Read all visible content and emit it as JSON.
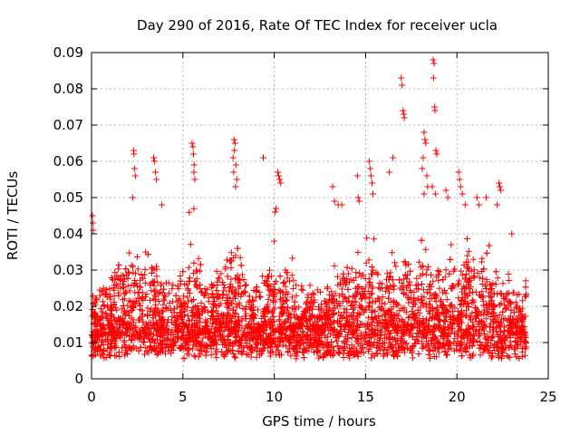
{
  "chart_data": {
    "type": "scatter",
    "title": "Day 290 of 2016, Rate Of TEC Index for receiver ucla",
    "xlabel": "GPS time / hours",
    "ylabel": "ROTI / TECUs",
    "xlim": [
      0,
      25
    ],
    "ylim": [
      0,
      0.09
    ],
    "xticks": [
      0,
      5,
      10,
      15,
      20,
      25
    ],
    "yticks": [
      0,
      0.01,
      0.02,
      0.03,
      0.04,
      0.05,
      0.06,
      0.07,
      0.08,
      0.09
    ],
    "grid": true,
    "marker": "+",
    "series": [
      {
        "name": "ROTI",
        "color": "#ff0000",
        "x_range": [
          0,
          23.8
        ],
        "seed": 290,
        "base_points": 4200,
        "peaks": [
          {
            "x": 0.05,
            "y": 0.045
          },
          {
            "x": 0.08,
            "y": 0.043
          },
          {
            "x": 0.1,
            "y": 0.041
          },
          {
            "x": 2.3,
            "y": 0.063
          },
          {
            "x": 2.32,
            "y": 0.062
          },
          {
            "x": 2.35,
            "y": 0.058
          },
          {
            "x": 2.4,
            "y": 0.056
          },
          {
            "x": 2.25,
            "y": 0.05
          },
          {
            "x": 3.4,
            "y": 0.061
          },
          {
            "x": 3.45,
            "y": 0.06
          },
          {
            "x": 3.5,
            "y": 0.057
          },
          {
            "x": 3.55,
            "y": 0.055
          },
          {
            "x": 3.85,
            "y": 0.048
          },
          {
            "x": 5.5,
            "y": 0.065
          },
          {
            "x": 5.55,
            "y": 0.064
          },
          {
            "x": 5.58,
            "y": 0.062
          },
          {
            "x": 5.62,
            "y": 0.059
          },
          {
            "x": 5.6,
            "y": 0.057
          },
          {
            "x": 5.65,
            "y": 0.055
          },
          {
            "x": 7.8,
            "y": 0.066
          },
          {
            "x": 7.85,
            "y": 0.065
          },
          {
            "x": 7.82,
            "y": 0.063
          },
          {
            "x": 7.75,
            "y": 0.061
          },
          {
            "x": 7.9,
            "y": 0.059
          },
          {
            "x": 7.78,
            "y": 0.057
          },
          {
            "x": 7.95,
            "y": 0.055
          },
          {
            "x": 7.88,
            "y": 0.053
          },
          {
            "x": 9.4,
            "y": 0.061
          },
          {
            "x": 10.2,
            "y": 0.057
          },
          {
            "x": 10.25,
            "y": 0.056
          },
          {
            "x": 10.3,
            "y": 0.055
          },
          {
            "x": 10.35,
            "y": 0.054
          },
          {
            "x": 10.1,
            "y": 0.047
          },
          {
            "x": 10.05,
            "y": 0.046
          },
          {
            "x": 13.3,
            "y": 0.049
          },
          {
            "x": 13.5,
            "y": 0.048
          },
          {
            "x": 13.7,
            "y": 0.048
          },
          {
            "x": 13.2,
            "y": 0.053
          },
          {
            "x": 14.55,
            "y": 0.056
          },
          {
            "x": 14.6,
            "y": 0.05
          },
          {
            "x": 14.65,
            "y": 0.049
          },
          {
            "x": 15.2,
            "y": 0.06
          },
          {
            "x": 15.25,
            "y": 0.058
          },
          {
            "x": 15.3,
            "y": 0.056
          },
          {
            "x": 15.35,
            "y": 0.054
          },
          {
            "x": 15.4,
            "y": 0.051
          },
          {
            "x": 16.3,
            "y": 0.057
          },
          {
            "x": 16.5,
            "y": 0.061
          },
          {
            "x": 16.95,
            "y": 0.083
          },
          {
            "x": 17.0,
            "y": 0.081
          },
          {
            "x": 17.05,
            "y": 0.074
          },
          {
            "x": 17.1,
            "y": 0.073
          },
          {
            "x": 17.12,
            "y": 0.072
          },
          {
            "x": 18.2,
            "y": 0.068
          },
          {
            "x": 18.25,
            "y": 0.066
          },
          {
            "x": 18.3,
            "y": 0.065
          },
          {
            "x": 18.15,
            "y": 0.061
          },
          {
            "x": 18.1,
            "y": 0.058
          },
          {
            "x": 18.35,
            "y": 0.056
          },
          {
            "x": 18.4,
            "y": 0.053
          },
          {
            "x": 18.2,
            "y": 0.051
          },
          {
            "x": 18.7,
            "y": 0.088
          },
          {
            "x": 18.75,
            "y": 0.087
          },
          {
            "x": 18.72,
            "y": 0.083
          },
          {
            "x": 18.78,
            "y": 0.075
          },
          {
            "x": 18.8,
            "y": 0.074
          },
          {
            "x": 18.85,
            "y": 0.063
          },
          {
            "x": 18.9,
            "y": 0.062
          },
          {
            "x": 18.65,
            "y": 0.053
          },
          {
            "x": 18.82,
            "y": 0.051
          },
          {
            "x": 19.4,
            "y": 0.052
          },
          {
            "x": 19.5,
            "y": 0.05
          },
          {
            "x": 20.1,
            "y": 0.057
          },
          {
            "x": 20.15,
            "y": 0.055
          },
          {
            "x": 20.2,
            "y": 0.053
          },
          {
            "x": 20.3,
            "y": 0.051
          },
          {
            "x": 20.45,
            "y": 0.048
          },
          {
            "x": 21.1,
            "y": 0.05
          },
          {
            "x": 21.2,
            "y": 0.048
          },
          {
            "x": 21.6,
            "y": 0.05
          },
          {
            "x": 22.3,
            "y": 0.054
          },
          {
            "x": 22.35,
            "y": 0.053
          },
          {
            "x": 22.4,
            "y": 0.052
          },
          {
            "x": 22.2,
            "y": 0.048
          },
          {
            "x": 23.0,
            "y": 0.04
          }
        ],
        "activity": [
          {
            "x": 0.0,
            "y": 0.008
          },
          {
            "x": 1.0,
            "y": 0.011
          },
          {
            "x": 2.3,
            "y": 0.018
          },
          {
            "x": 3.0,
            "y": 0.012
          },
          {
            "x": 3.5,
            "y": 0.016
          },
          {
            "x": 4.5,
            "y": 0.01
          },
          {
            "x": 5.5,
            "y": 0.019
          },
          {
            "x": 6.5,
            "y": 0.01
          },
          {
            "x": 7.8,
            "y": 0.019
          },
          {
            "x": 8.8,
            "y": 0.009
          },
          {
            "x": 10.2,
            "y": 0.017
          },
          {
            "x": 11.5,
            "y": 0.009
          },
          {
            "x": 12.5,
            "y": 0.01
          },
          {
            "x": 13.5,
            "y": 0.014
          },
          {
            "x": 15.2,
            "y": 0.016
          },
          {
            "x": 16.0,
            "y": 0.012
          },
          {
            "x": 17.0,
            "y": 0.015
          },
          {
            "x": 18.5,
            "y": 0.016
          },
          {
            "x": 19.5,
            "y": 0.012
          },
          {
            "x": 20.5,
            "y": 0.018
          },
          {
            "x": 21.5,
            "y": 0.017
          },
          {
            "x": 22.5,
            "y": 0.012
          },
          {
            "x": 23.8,
            "y": 0.009
          }
        ]
      }
    ]
  }
}
